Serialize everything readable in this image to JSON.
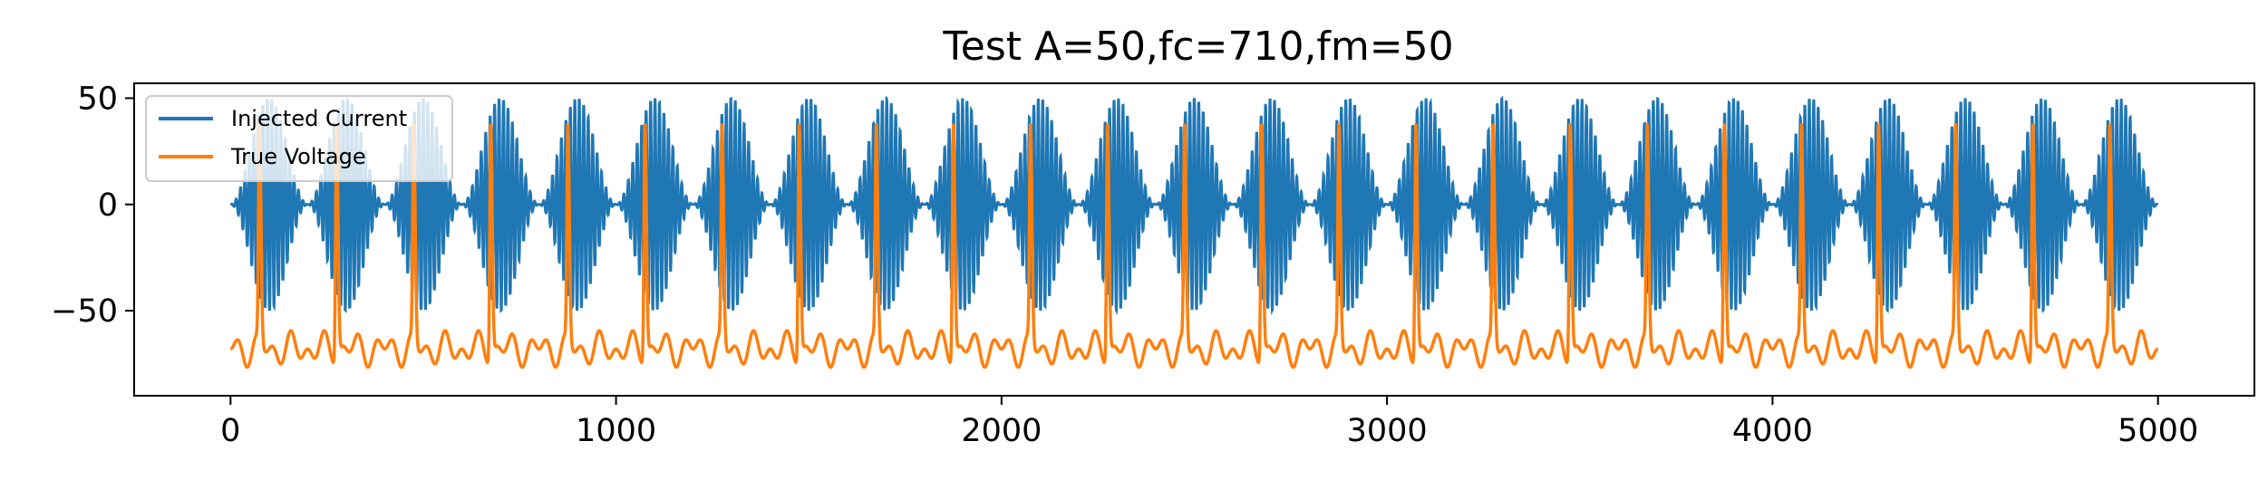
{
  "chart_data": {
    "type": "line",
    "title": "Test A=50,fc=710,fm=50",
    "xlabel": "",
    "ylabel": "",
    "xlim": [
      -250,
      5250
    ],
    "ylim": [
      -90,
      57
    ],
    "x_ticks": [
      0,
      1000,
      2000,
      3000,
      4000,
      5000
    ],
    "x_tick_labels": [
      "0",
      "1000",
      "2000",
      "3000",
      "4000",
      "5000"
    ],
    "y_ticks": [
      50,
      0,
      -50
    ],
    "y_tick_labels": [
      "50",
      "0",
      "−50"
    ],
    "grid": false,
    "legend_position": "top-left",
    "x_range": [
      0,
      5000
    ],
    "series": [
      {
        "name": "Injected Current",
        "color": "#1f77b4",
        "signal": {
          "kind": "amplitude-modulated sinusoid",
          "amplitude": 50,
          "carrier_frequency": 710,
          "modulation_frequency": 50,
          "visible_envelope_cycles": 25,
          "min": -50,
          "max": 50
        }
      },
      {
        "name": "True Voltage",
        "color": "#ff7f0e",
        "signal": {
          "kind": "periodic spikes on oscillating baseline",
          "baseline": -68,
          "baseline_ripple_min": -82,
          "baseline_ripple_max": -60,
          "spike_peak": 38,
          "spike_times": [
            75,
            275,
            475,
            675,
            875,
            1075,
            1275,
            1475,
            1675,
            1875,
            2075,
            2275,
            2475,
            2675,
            2875,
            3075,
            3275,
            3475,
            3675,
            3875,
            4075,
            4275,
            4475,
            4675,
            4875
          ]
        }
      }
    ]
  }
}
